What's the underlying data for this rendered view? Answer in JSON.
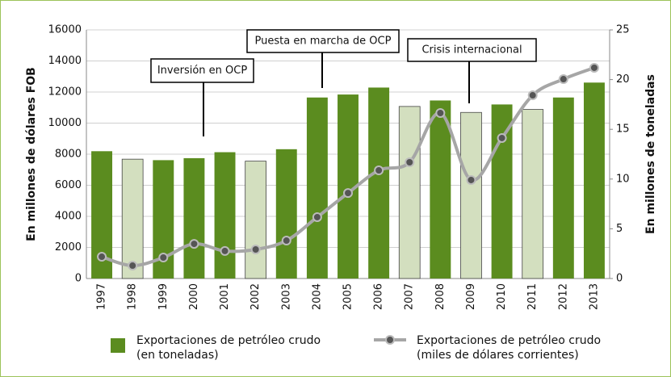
{
  "chart_data": {
    "type": "bar_line",
    "categories": [
      "1997",
      "1998",
      "1999",
      "2000",
      "2001",
      "2002",
      "2003",
      "2004",
      "2005",
      "2006",
      "2007",
      "2008",
      "2009",
      "2010",
      "2011",
      "2012",
      "2013"
    ],
    "ylabel": "En millones de dólares FOB",
    "y2label": "En millones de toneladas",
    "ylim": [
      0,
      16000
    ],
    "yticks": [
      0,
      2000,
      4000,
      6000,
      8000,
      10000,
      12000,
      14000,
      16000
    ],
    "y2lim": [
      0,
      25
    ],
    "y2ticks": [
      0,
      5,
      10,
      15,
      20,
      25
    ],
    "grid": true,
    "series": [
      {
        "name": "Exportaciones de petróleo crudo (en toneladas)",
        "type": "bar",
        "axis": "y2",
        "color": "#5b8c1f",
        "colors": [
          "#5b8c1f",
          "#d3dfbf",
          "#5b8c1f",
          "#5b8c1f",
          "#5b8c1f",
          "#d3dfbf",
          "#5b8c1f",
          "#5b8c1f",
          "#5b8c1f",
          "#5b8c1f",
          "#d3dfbf",
          "#5b8c1f",
          "#d3dfbf",
          "#5b8c1f",
          "#d3dfbf",
          "#5b8c1f",
          "#5b8c1f"
        ],
        "values": [
          12.8,
          12.0,
          11.9,
          12.1,
          12.7,
          11.8,
          13.0,
          18.2,
          18.5,
          19.2,
          17.3,
          17.9,
          16.7,
          17.5,
          17.0,
          18.2,
          19.7
        ]
      },
      {
        "name": "Exportaciones de petróleo crudo (miles de dólares corrientes)",
        "type": "line",
        "axis": "y",
        "color": "#a6a6a6",
        "values": [
          1400,
          830,
          1350,
          2230,
          1770,
          1870,
          2440,
          3950,
          5500,
          6960,
          7480,
          10650,
          6340,
          9040,
          11790,
          12830,
          13560
        ]
      }
    ],
    "annotations": [
      "Inversión en OCP",
      "Puesta en marcha de OCP",
      "Crisis internacional"
    ]
  }
}
